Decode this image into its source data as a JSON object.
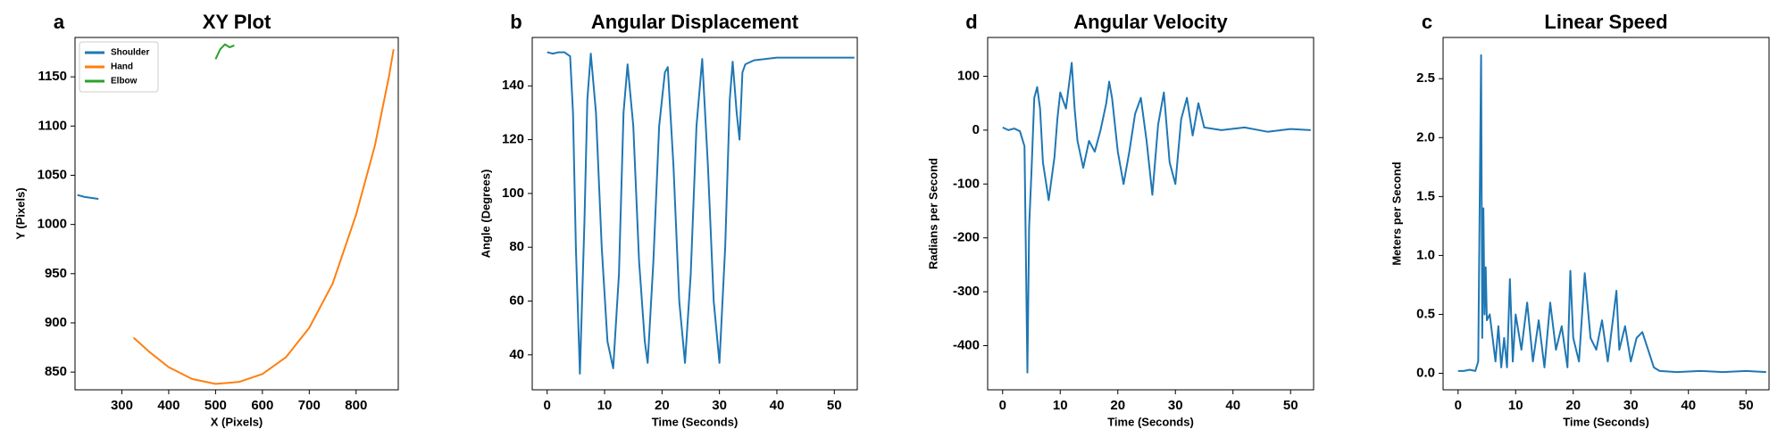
{
  "chart_data": [
    {
      "type": "line",
      "panel_label": "a",
      "title": "XY Plot",
      "x_label": "X (Pixels)",
      "y_label": "Y (Pixels)",
      "xlim": [
        200,
        890
      ],
      "ylim": [
        832,
        1190
      ],
      "xticks": [
        300,
        400,
        500,
        600,
        700,
        800
      ],
      "yticks": [
        850,
        900,
        950,
        1000,
        1050,
        1100,
        1150
      ],
      "legend": "upper left",
      "series": [
        {
          "name": "Shoulder",
          "color": "#1f77b4",
          "x": [
            205,
            220,
            235,
            250
          ],
          "values": [
            1030,
            1028,
            1027,
            1026
          ]
        },
        {
          "name": "Hand",
          "color": "#ff7f0e",
          "x": [
            325,
            360,
            400,
            450,
            500,
            550,
            600,
            650,
            700,
            750,
            800,
            840,
            870,
            880
          ],
          "values": [
            885,
            870,
            855,
            843,
            838,
            840,
            848,
            865,
            895,
            940,
            1010,
            1080,
            1150,
            1178
          ]
        },
        {
          "name": "Elbow",
          "color": "#2ca02c",
          "x": [
            500,
            510,
            520,
            530,
            540
          ],
          "values": [
            1168,
            1178,
            1183,
            1180,
            1182
          ]
        }
      ]
    },
    {
      "type": "line",
      "panel_label": "b",
      "title": "Angular Displacement",
      "x_label": "Time (Seconds)",
      "y_label": "Angle (Degrees)",
      "xlim": [
        -2.6,
        54
      ],
      "ylim": [
        27,
        158
      ],
      "xticks": [
        0,
        10,
        20,
        30,
        40,
        50
      ],
      "yticks": [
        40,
        60,
        80,
        100,
        120,
        140
      ],
      "color": "#1f77b4",
      "x": [
        0,
        1,
        2,
        3,
        4,
        4.5,
        5,
        5.7,
        6.5,
        7,
        7.6,
        8.5,
        9.5,
        10.5,
        11.5,
        12.5,
        13.3,
        14,
        15,
        16,
        17,
        17.5,
        18.5,
        19.5,
        20.5,
        21,
        22,
        23,
        24,
        25,
        26,
        27,
        28,
        29,
        30,
        31,
        31.8,
        32.3,
        33,
        33.5,
        34,
        34.5,
        36,
        40,
        45,
        50,
        53.5
      ],
      "values": [
        152.5,
        152,
        152.5,
        152.5,
        151,
        130,
        80,
        33,
        90,
        135,
        152,
        130,
        80,
        45,
        35,
        70,
        130,
        148,
        125,
        75,
        45,
        37,
        75,
        125,
        145,
        147,
        110,
        60,
        37,
        70,
        125,
        150,
        110,
        60,
        37,
        80,
        135,
        149,
        130,
        120,
        145,
        148,
        149.5,
        150.5,
        150.5,
        150.5,
        150.5
      ]
    },
    {
      "type": "line",
      "panel_label": "d",
      "title": "Angular Velocity",
      "x_label": "Time (Seconds)",
      "y_label": "Radians per Second",
      "xlim": [
        -2.6,
        54
      ],
      "ylim": [
        -482,
        172
      ],
      "xticks": [
        0,
        10,
        20,
        30,
        40,
        50
      ],
      "yticks": [
        -400,
        -300,
        -200,
        -100,
        0,
        100
      ],
      "color": "#1f77b4",
      "x": [
        0,
        1,
        2,
        3,
        3.8,
        4.3,
        4.6,
        5,
        5.5,
        6,
        6.5,
        7,
        8,
        9,
        9.5,
        10,
        11,
        12,
        12.5,
        13,
        14,
        15,
        16,
        17,
        18,
        18.5,
        19,
        20,
        21,
        22,
        23,
        24,
        25,
        26,
        27,
        28,
        29,
        30,
        31,
        32,
        33,
        34,
        35,
        38,
        42,
        46,
        50,
        53.5
      ],
      "values": [
        5,
        0,
        3,
        -2,
        -30,
        -450,
        -180,
        -80,
        60,
        80,
        40,
        -60,
        -130,
        -50,
        20,
        70,
        40,
        125,
        40,
        -20,
        -70,
        -20,
        -40,
        0,
        50,
        90,
        60,
        -40,
        -100,
        -40,
        30,
        60,
        -20,
        -120,
        10,
        70,
        -60,
        -100,
        20,
        60,
        -10,
        50,
        5,
        0,
        5,
        -3,
        2,
        0
      ]
    },
    {
      "type": "line",
      "panel_label": "c",
      "title": "Linear Speed",
      "x_label": "Time (Seconds)",
      "y_label": "Meters per Second",
      "xlim": [
        -2.6,
        54
      ],
      "ylim": [
        -0.14,
        2.85
      ],
      "xticks": [
        0,
        10,
        20,
        30,
        40,
        50
      ],
      "yticks": [
        {
          "value": 0,
          "label": "0.0"
        },
        0.5,
        {
          "value": 1,
          "label": "1.0"
        },
        1.5,
        {
          "value": 2,
          "label": "2.0"
        },
        2.5
      ],
      "color": "#1f77b4",
      "x": [
        0,
        1,
        2,
        3,
        3.5,
        4,
        4.2,
        4.4,
        4.6,
        4.8,
        5,
        5.5,
        6,
        6.5,
        7,
        7.5,
        8,
        8.5,
        9,
        9.5,
        10,
        11,
        12,
        13,
        14,
        15,
        16,
        17,
        18,
        19,
        19.5,
        20,
        21,
        22,
        23,
        24,
        25,
        26,
        27,
        27.5,
        28,
        29,
        30,
        31,
        32,
        33,
        34,
        35,
        38,
        42,
        46,
        50,
        53.5
      ],
      "values": [
        0.02,
        0.02,
        0.03,
        0.02,
        0.1,
        2.7,
        0.3,
        1.4,
        0.5,
        0.9,
        0.45,
        0.5,
        0.3,
        0.1,
        0.4,
        0.05,
        0.3,
        0.05,
        0.8,
        0.1,
        0.5,
        0.2,
        0.6,
        0.1,
        0.45,
        0.05,
        0.6,
        0.2,
        0.4,
        0.05,
        0.87,
        0.3,
        0.1,
        0.85,
        0.3,
        0.2,
        0.45,
        0.1,
        0.5,
        0.7,
        0.2,
        0.4,
        0.1,
        0.3,
        0.35,
        0.2,
        0.05,
        0.02,
        0.01,
        0.02,
        0.01,
        0.02,
        0.01
      ]
    }
  ]
}
